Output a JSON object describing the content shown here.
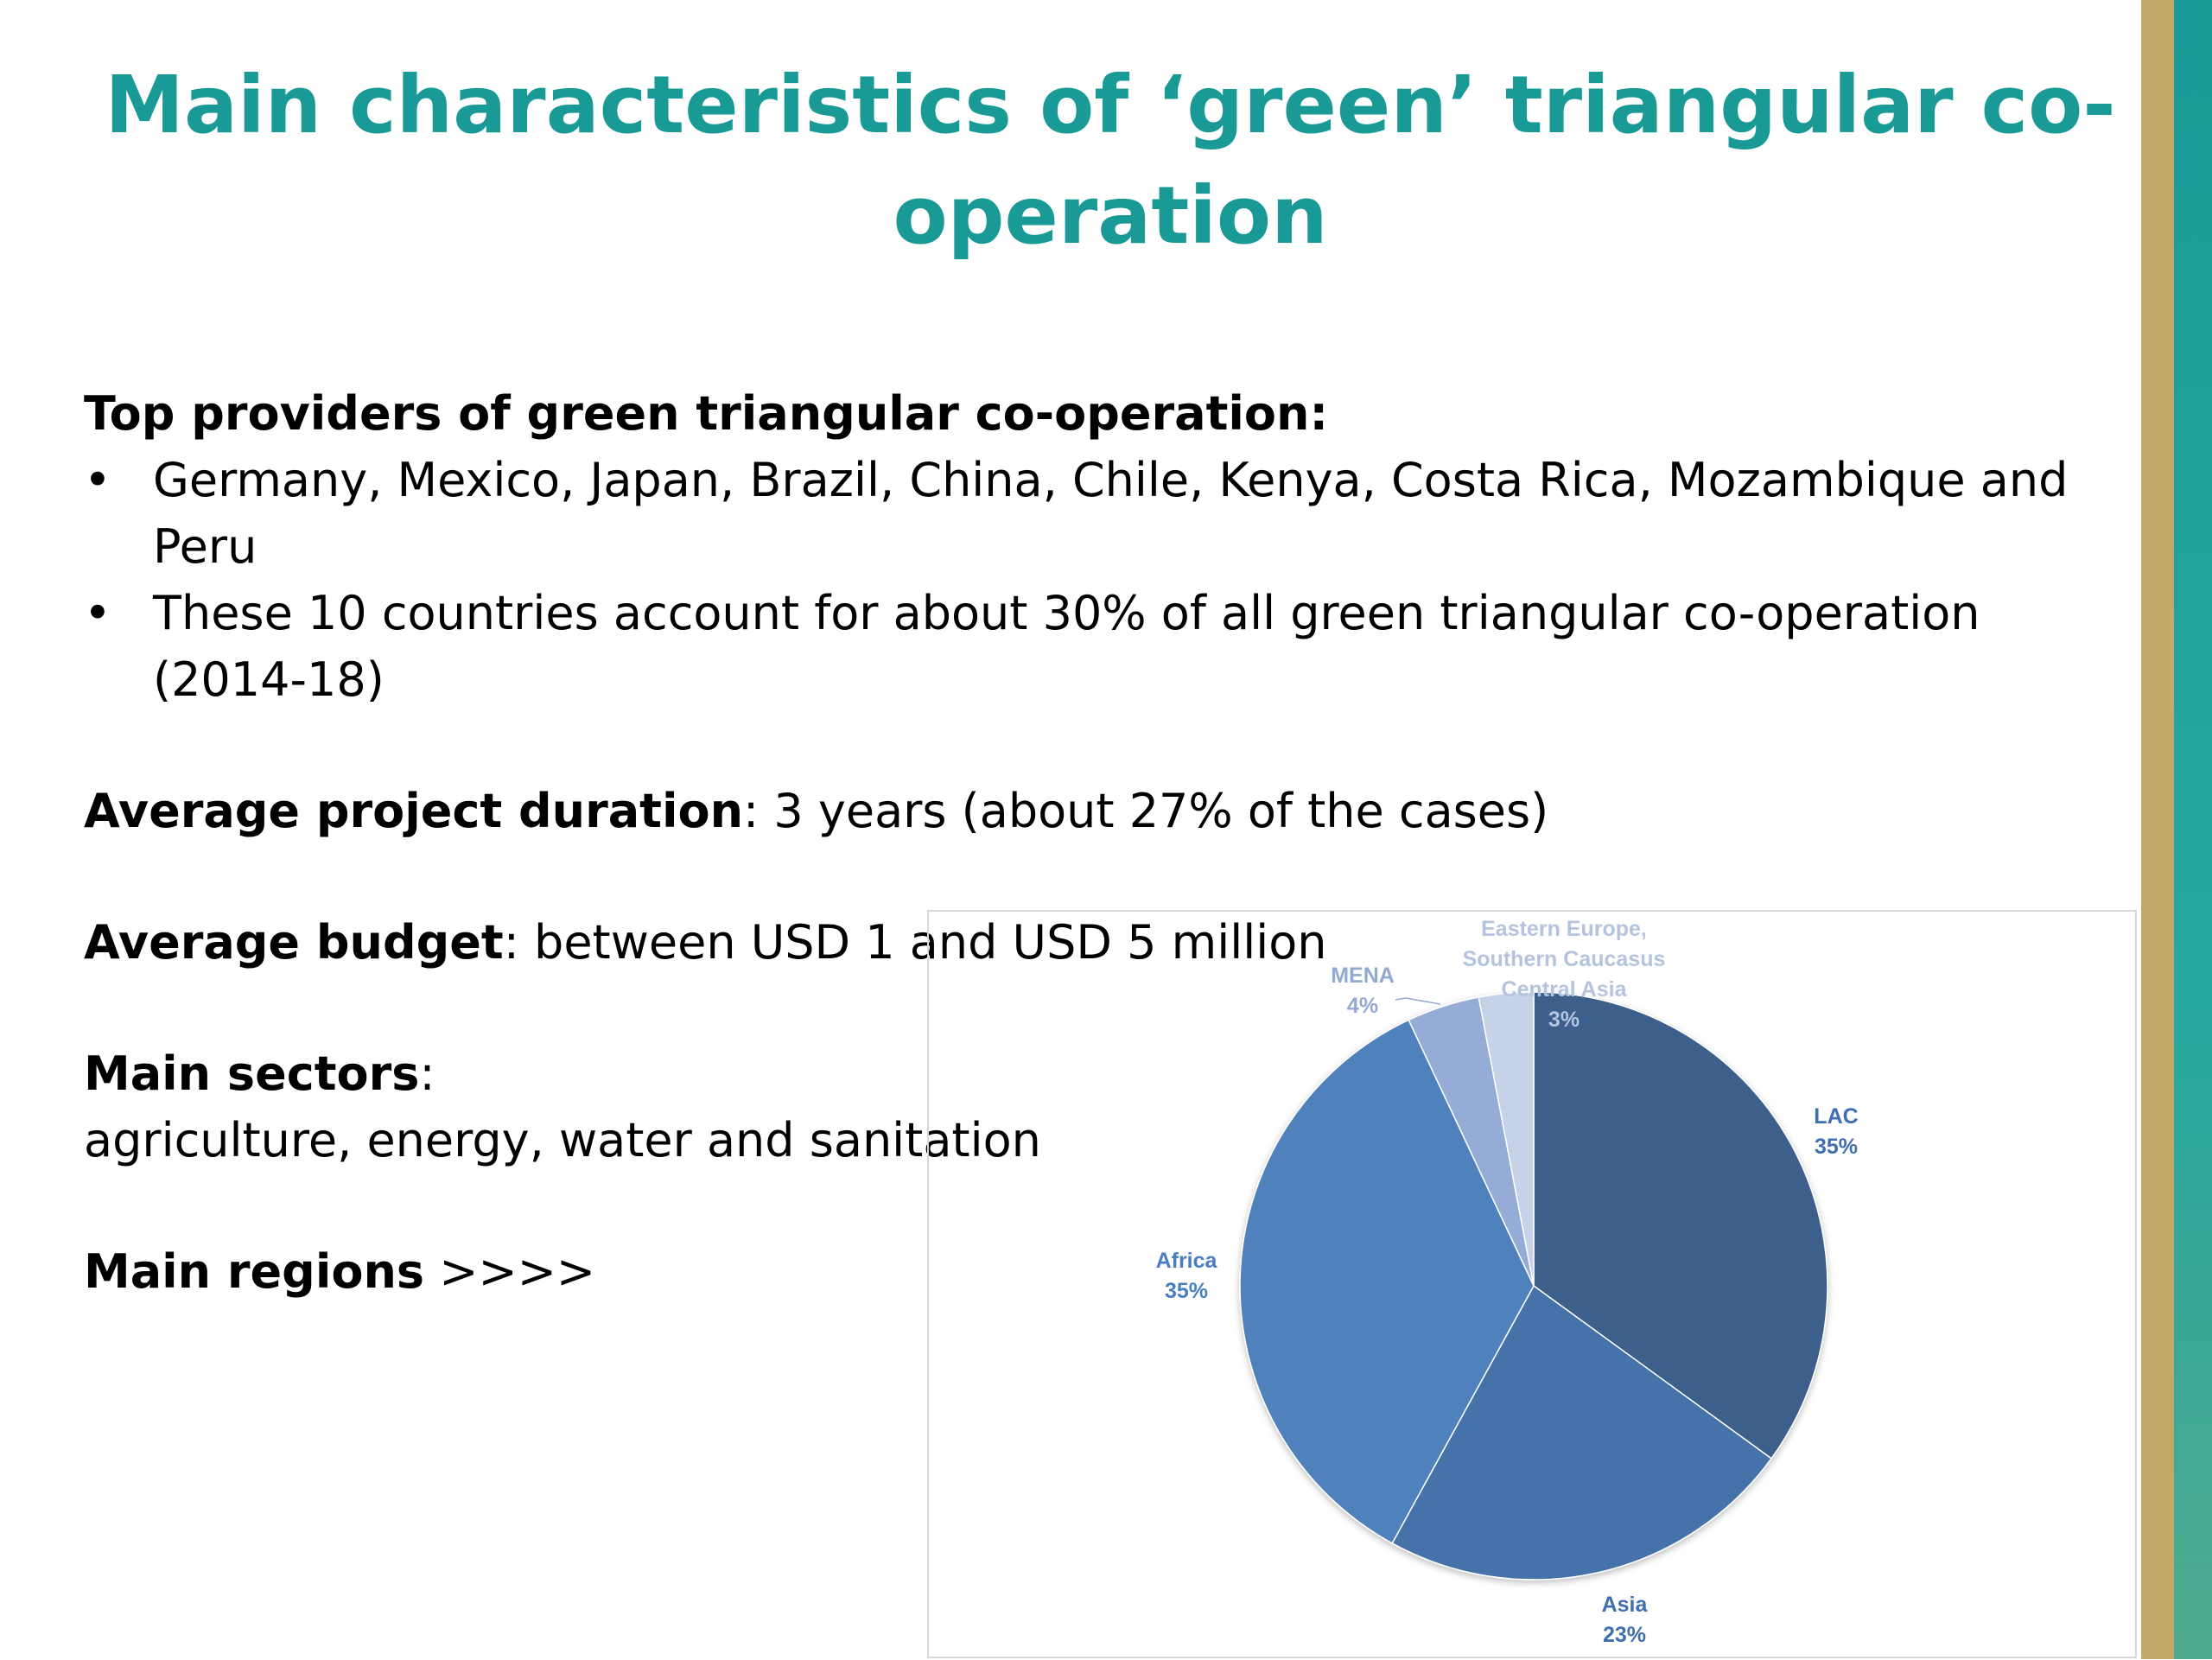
{
  "slide": {
    "title": "Main characteristics of ‘green’ triangular co-operation",
    "providers_heading": "Top providers of green triangular co-operation:",
    "bullets": [
      "Germany, Mexico, Japan, Brazil, China, Chile, Kenya, Costa Rica, Mozambique and Peru",
      "These 10 countries account for about 30% of all green triangular co-operation (2014-18)"
    ],
    "bullet_symbol": "•",
    "duration_label": "Average project duration",
    "duration_value": ": 3 years (about 27% of the cases)",
    "budget_label": "Average budget",
    "budget_value": ": between USD 1 and USD 5 million",
    "sectors_label": "Main sectors",
    "sectors_colon": ":",
    "sectors_value": "agriculture, energy, water and sanitation",
    "regions_label": "Main regions",
    "regions_suffix": " >>>>"
  },
  "colors": {
    "title": "#1a9a96",
    "stripe_gold": "#c2a96a",
    "stripe_teal": "#1a9a96"
  },
  "chart_data": {
    "type": "pie",
    "title": "",
    "series": [
      {
        "values": [
          35,
          23,
          35,
          4,
          3
        ],
        "categories": [
          "LAC",
          "Asia",
          "Africa",
          "MENA",
          "Eastern Europe, Southern Caucasus Central Asia"
        ],
        "labels": [
          "35%",
          "23%",
          "35%",
          "4%",
          "3%"
        ],
        "colors": [
          "#3c5f8c",
          "#4472a8",
          "#4f81bd",
          "#95add6",
          "#c5d2e8"
        ],
        "label_colors": [
          "#3f6fb0",
          "#3f6fb0",
          "#4a7ec0",
          "#93a9cf",
          "#b4c4de"
        ]
      }
    ],
    "start": "12 o'clock",
    "direction": "clockwise",
    "legend": "none (data labels on chart)"
  }
}
